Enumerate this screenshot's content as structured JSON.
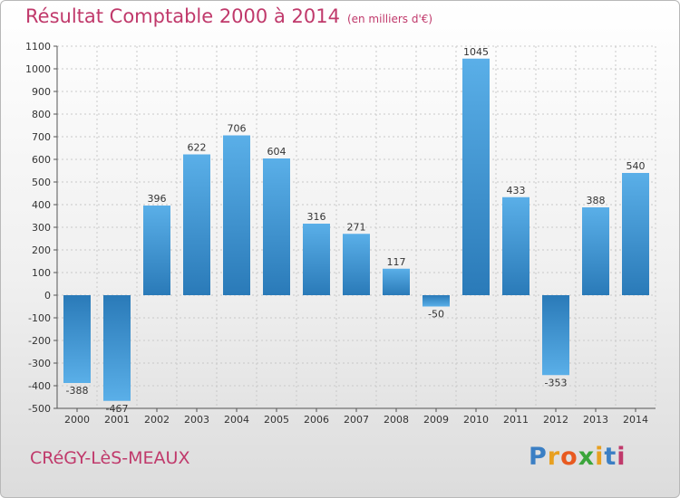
{
  "header": {
    "title": "Résultat Comptable 2000 à 2014",
    "subtitle": "(en milliers d'€)"
  },
  "footer": {
    "town": "CRéGY-LèS-MEAUX",
    "brand_letters": [
      {
        "ch": "P",
        "color": "#3b7fc4"
      },
      {
        "ch": "r",
        "color": "#e8a020"
      },
      {
        "ch": "o",
        "color": "#e85a20"
      },
      {
        "ch": "x",
        "color": "#3ba53b"
      },
      {
        "ch": "i",
        "color": "#e8a020"
      },
      {
        "ch": "t",
        "color": "#3b7fc4"
      },
      {
        "ch": "i",
        "color": "#c0396b"
      }
    ]
  },
  "colors": {
    "accent": "#c0396b",
    "bar_light": "#5aafe8",
    "bar_dark": "#2a7ab8"
  },
  "chart_data": {
    "type": "bar",
    "title": "Résultat Comptable 2000 à 2014",
    "subtitle": "(en milliers d'€)",
    "categories": [
      "2000",
      "2001",
      "2002",
      "2003",
      "2004",
      "2005",
      "2006",
      "2007",
      "2008",
      "2009",
      "2010",
      "2011",
      "2012",
      "2013",
      "2014"
    ],
    "values": [
      -388,
      -467,
      396,
      622,
      706,
      604,
      316,
      271,
      117,
      -50,
      1045,
      433,
      -353,
      388,
      540
    ],
    "ylim": [
      -500,
      1100
    ],
    "yticks": [
      -500,
      -400,
      -300,
      -200,
      -100,
      0,
      100,
      200,
      300,
      400,
      500,
      600,
      700,
      800,
      900,
      1000,
      1100
    ],
    "grid": true,
    "legend": "none"
  }
}
